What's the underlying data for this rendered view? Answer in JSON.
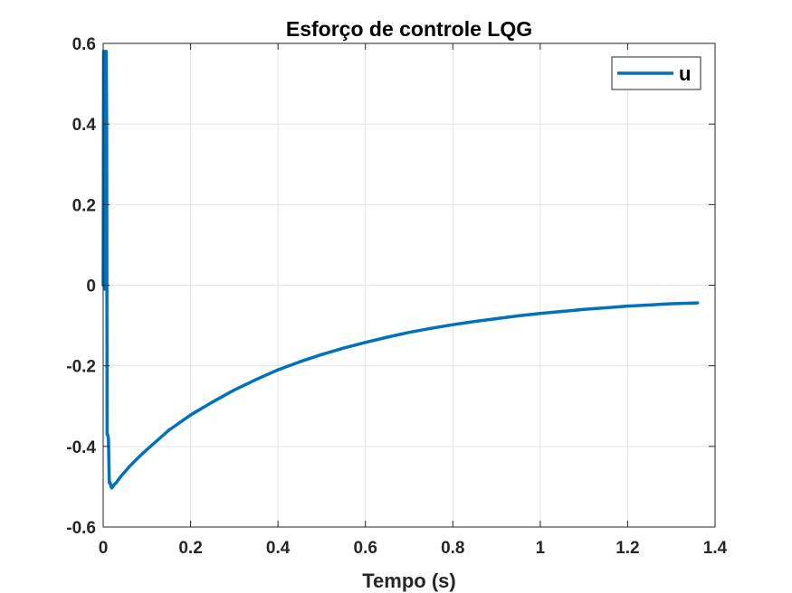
{
  "chart_data": {
    "type": "line",
    "title": "Esforço de controle LQG",
    "xlabel": "Tempo (s)",
    "ylabel": "",
    "xlim": [
      0,
      1.4
    ],
    "ylim": [
      -0.6,
      0.6
    ],
    "xticks": [
      0,
      0.2,
      0.4,
      0.6,
      0.8,
      1,
      1.2,
      1.4
    ],
    "xtick_labels": [
      "0",
      "0.2",
      "0.4",
      "0.6",
      "0.8",
      "1",
      "1.2",
      "1.4"
    ],
    "yticks": [
      -0.6,
      -0.4,
      -0.2,
      0,
      0.2,
      0.4,
      0.6
    ],
    "ytick_labels": [
      "-0.6",
      "-0.4",
      "-0.2",
      "0",
      "0.2",
      "0.4",
      "0.6"
    ],
    "grid": true,
    "legend_position": "top-right",
    "colors": {
      "series": "#0072bd"
    },
    "series": [
      {
        "name": "u",
        "x": [
          0,
          0.001,
          0.002,
          0.003,
          0.004,
          0.005,
          0.006,
          0.007,
          0.008,
          0.009,
          0.01,
          0.012,
          0.014,
          0.016,
          0.018,
          0.02,
          0.022,
          0.025,
          0.03,
          0.04,
          0.06,
          0.08,
          0.1,
          0.15,
          0.2,
          0.25,
          0.3,
          0.35,
          0.4,
          0.45,
          0.5,
          0.55,
          0.6,
          0.65,
          0.7,
          0.75,
          0.8,
          0.85,
          0.9,
          0.95,
          1.0,
          1.05,
          1.1,
          1.15,
          1.2,
          1.25,
          1.3,
          1.36
        ],
        "y": [
          0,
          0.58,
          0.05,
          0.58,
          -0.01,
          0.58,
          0.55,
          0.58,
          0.4,
          -0.37,
          -0.37,
          -0.38,
          -0.49,
          -0.49,
          -0.5,
          -0.503,
          -0.5,
          -0.495,
          -0.49,
          -0.475,
          -0.45,
          -0.428,
          -0.408,
          -0.36,
          -0.322,
          -0.29,
          -0.26,
          -0.234,
          -0.21,
          -0.19,
          -0.172,
          -0.156,
          -0.142,
          -0.129,
          -0.117,
          -0.107,
          -0.098,
          -0.09,
          -0.083,
          -0.076,
          -0.07,
          -0.065,
          -0.06,
          -0.056,
          -0.052,
          -0.049,
          -0.046,
          -0.044
        ]
      }
    ]
  }
}
